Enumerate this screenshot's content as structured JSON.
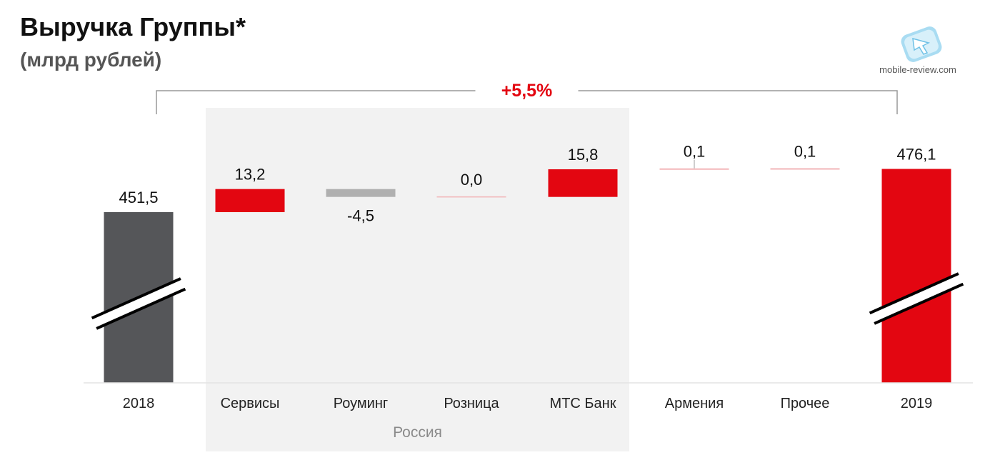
{
  "header": {
    "title": "Выручка Группы*",
    "subtitle": "(млрд рублей)"
  },
  "watermark": {
    "text": "mobile-review.com"
  },
  "chart_data": {
    "type": "bar",
    "subtype": "waterfall",
    "categories": [
      "2018",
      "Сервисы",
      "Роуминг",
      "Розница",
      "МТС Банк",
      "Армения",
      "Прочее",
      "2019"
    ],
    "values": [
      451.5,
      13.2,
      -4.5,
      0.0,
      15.8,
      0.1,
      0.1,
      476.1
    ],
    "value_labels": [
      "451,5",
      "13,2",
      "-4,5",
      "0,0",
      "15,8",
      "0,1",
      "0,1",
      "476,1"
    ],
    "kinds": [
      "total",
      "delta",
      "delta",
      "delta",
      "delta",
      "delta",
      "delta",
      "total"
    ],
    "axis_break": true,
    "group": {
      "label": "Россия",
      "categories": [
        "Сервисы",
        "Роуминг",
        "Розница",
        "МТС Банк"
      ]
    },
    "growth": {
      "label": "+5,5%",
      "from": "2018",
      "to": "2019"
    },
    "colors": {
      "start_total": "#555659",
      "end_total": "#E30611",
      "increase": "#E30611",
      "decrease": "#B0B0B0",
      "zero": "#F2B5B8",
      "group_background": "#F2F2F2",
      "growth_text": "#E30611",
      "bracket": "#999999"
    }
  }
}
